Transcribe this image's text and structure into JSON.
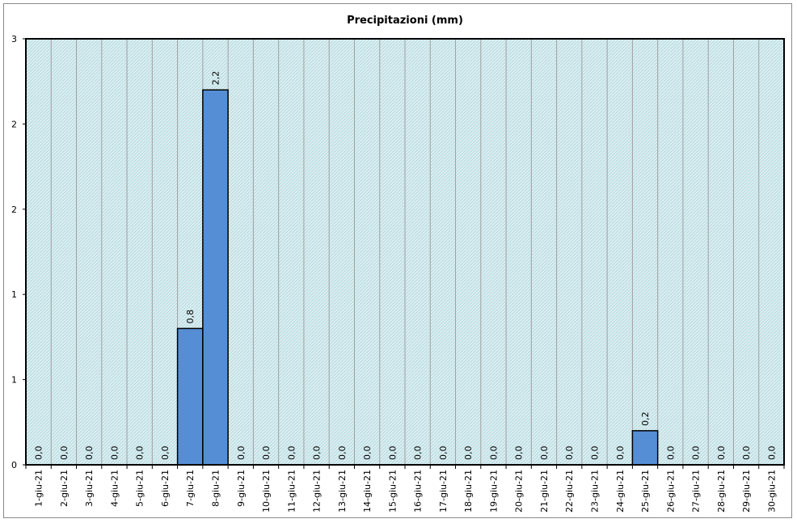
{
  "chart_data": {
    "type": "bar",
    "title": "Precipitazioni (mm)",
    "xlabel": "",
    "ylabel": "",
    "categories": [
      "1-giu-21",
      "2-giu-21",
      "3-giu-21",
      "4-giu-21",
      "5-giu-21",
      "6-giu-21",
      "7-giu-21",
      "8-giu-21",
      "9-giu-21",
      "10-giu-21",
      "11-giu-21",
      "12-giu-21",
      "13-giu-21",
      "14-giu-21",
      "15-giu-21",
      "16-giu-21",
      "17-giu-21",
      "18-giu-21",
      "19-giu-21",
      "20-giu-21",
      "21-giu-21",
      "22-giu-21",
      "23-giu-21",
      "24-giu-21",
      "25-giu-21",
      "26-giu-21",
      "27-giu-21",
      "28-giu-21",
      "29-giu-21",
      "30-giu-21"
    ],
    "values": [
      0,
      0,
      0,
      0,
      0,
      0,
      0.8,
      2.2,
      0,
      0,
      0,
      0,
      0,
      0,
      0,
      0,
      0,
      0,
      0,
      0,
      0,
      0,
      0,
      0,
      0.2,
      0,
      0,
      0,
      0,
      0
    ],
    "data_labels": [
      "0,0",
      "0,0",
      "0,0",
      "0,0",
      "0,0",
      "0,0",
      "0,8",
      "2,2",
      "0,0",
      "0,0",
      "0,0",
      "0,0",
      "0,0",
      "0,0",
      "0,0",
      "0,0",
      "0,0",
      "0,0",
      "0,0",
      "0,0",
      "0,0",
      "0,0",
      "0,0",
      "0,0",
      "0,2",
      "0,0",
      "0,0",
      "0,0",
      "0,0",
      "0,0"
    ],
    "ylim": [
      0,
      2.5
    ],
    "yticks": [
      0,
      0.5,
      1,
      1.5,
      2,
      2.5
    ],
    "ytick_labels": [
      "0",
      "1",
      "1",
      "2",
      "2",
      "3"
    ],
    "grid": "vertical",
    "legend": "none",
    "colors": {
      "bar": "#558ED5",
      "bar_edge": "#000000",
      "plot_bg": "#DDEFF2",
      "hatch": "#9FCCD3",
      "gridline": "#A0A0A0",
      "frame": "#8A8A8A"
    }
  }
}
